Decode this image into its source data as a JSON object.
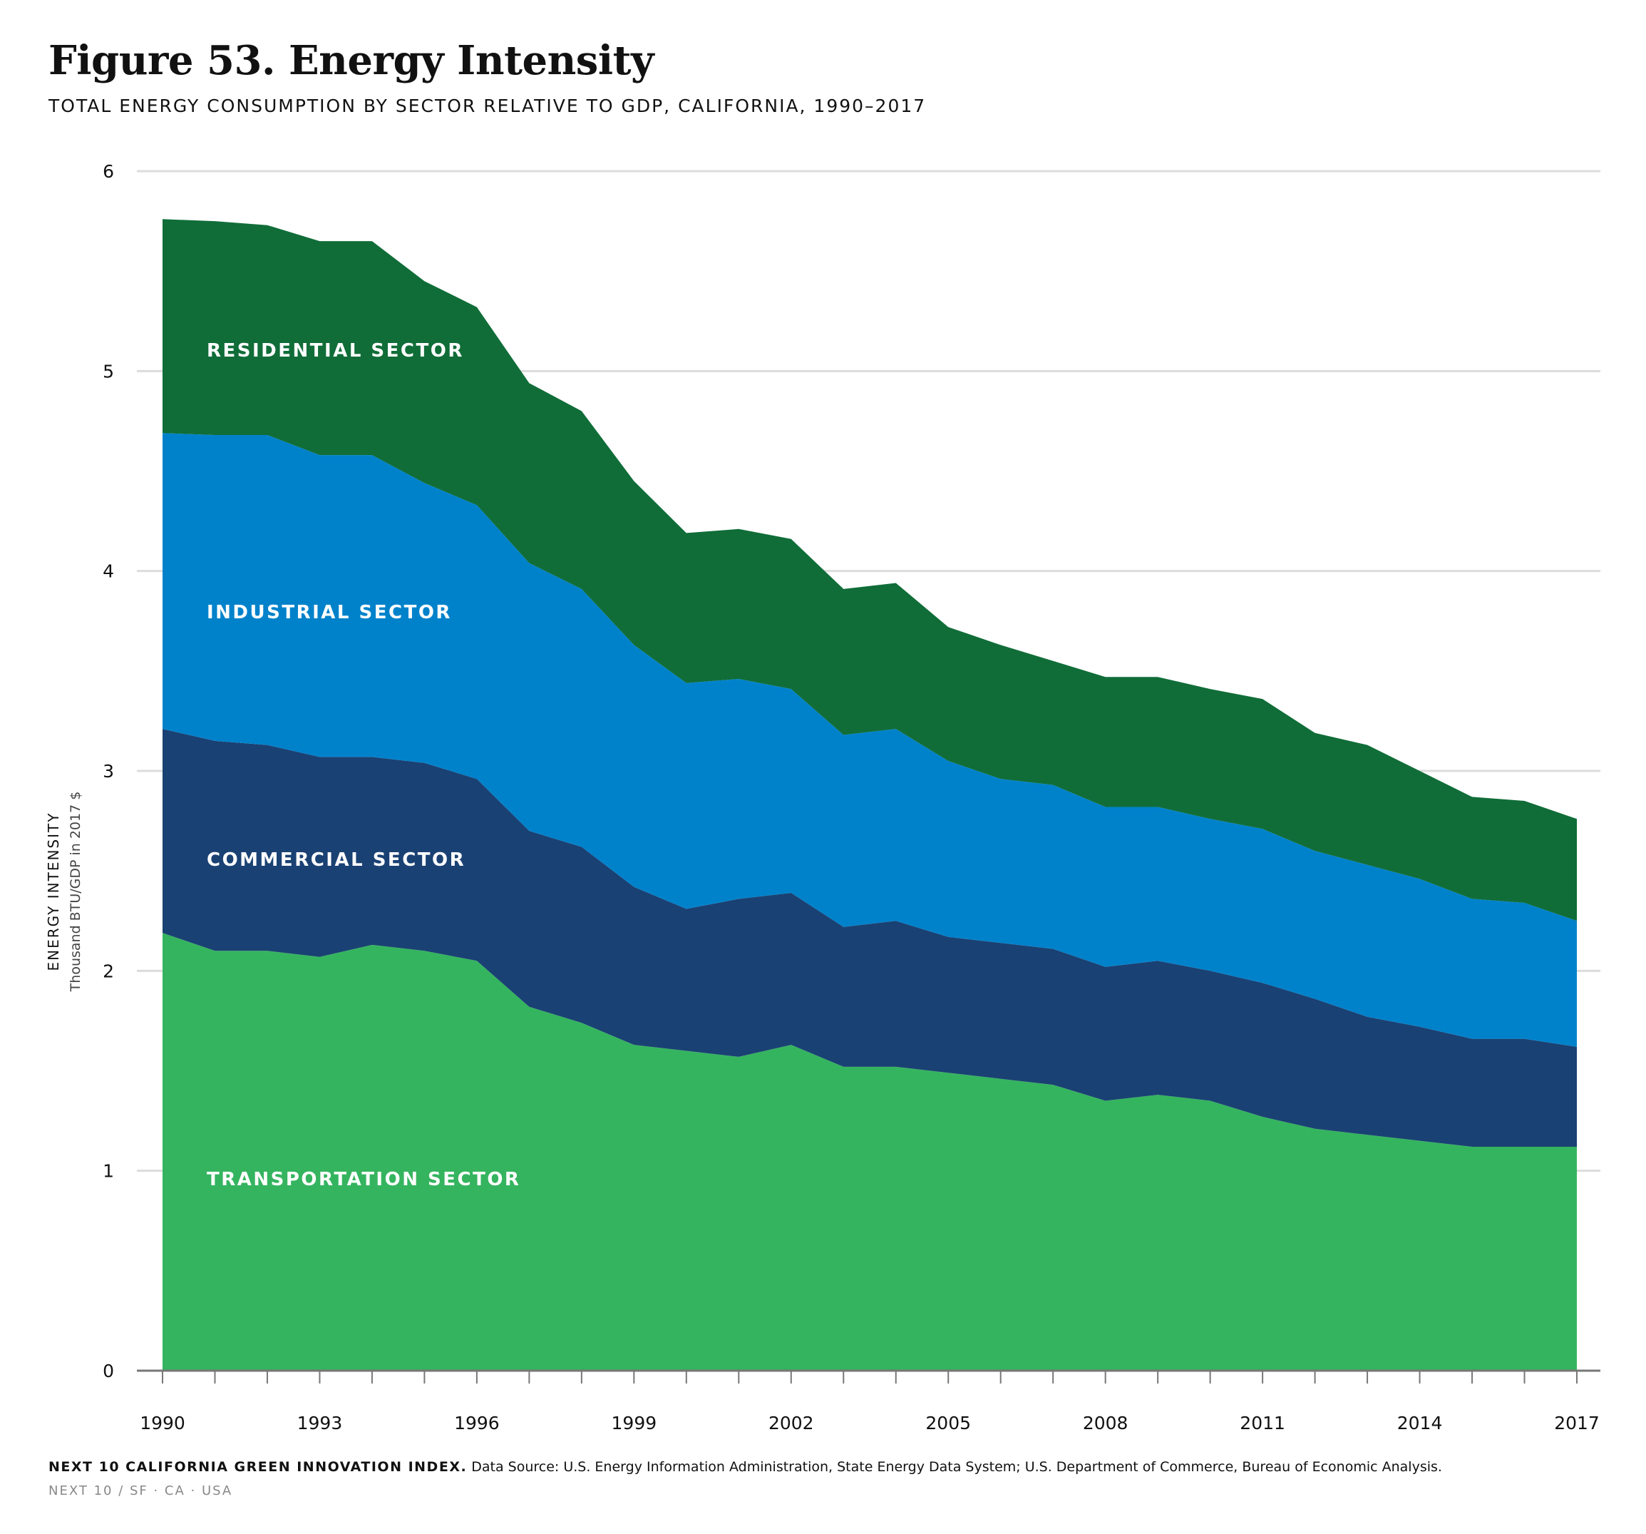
{
  "title": "Figure 53. Energy Intensity",
  "subtitle": "TOTAL ENERGY CONSUMPTION BY SECTOR RELATIVE TO GDP, CALIFORNIA, 1990–2017",
  "footer": {
    "source_title": "NEXT 10 CALIFORNIA GREEN INNOVATION INDEX.",
    "source_text": "Data Source: U.S. Energy Information Administration, State Energy Data System; U.S. Department of Commerce, Bureau of Economic Analysis.",
    "org_line": "NEXT 10  /  SF · CA · USA"
  },
  "chart_data": {
    "type": "area",
    "stacked": true,
    "ylabel": "ENERGY INTENSITY",
    "ylabel_sub": "Thousand BTU/GDP in 2017 $",
    "ylim": [
      0,
      6
    ],
    "yticks": [
      0,
      1,
      2,
      3,
      4,
      5,
      6
    ],
    "xlim": [
      1990,
      2017
    ],
    "xticks": [
      1990,
      1993,
      1996,
      1999,
      2002,
      2005,
      2008,
      2011,
      2014,
      2017
    ],
    "grid": true,
    "x": [
      1990,
      1991,
      1992,
      1993,
      1994,
      1995,
      1996,
      1997,
      1998,
      1999,
      2000,
      2001,
      2002,
      2003,
      2004,
      2005,
      2006,
      2007,
      2008,
      2009,
      2010,
      2011,
      2012,
      2013,
      2014,
      2015,
      2016,
      2017
    ],
    "series": [
      {
        "name": "TRANSPORTATION SECTOR",
        "color": "#35b45f",
        "values": [
          2.19,
          2.1,
          2.1,
          2.07,
          2.13,
          2.1,
          2.05,
          1.82,
          1.74,
          1.63,
          1.6,
          1.57,
          1.63,
          1.52,
          1.52,
          1.49,
          1.46,
          1.43,
          1.35,
          1.38,
          1.35,
          1.27,
          1.21,
          1.18,
          1.15,
          1.12,
          1.12,
          1.12
        ]
      },
      {
        "name": "COMMERCIAL SECTOR",
        "color": "#1a4173",
        "values": [
          1.02,
          1.05,
          1.03,
          1.0,
          0.94,
          0.94,
          0.91,
          0.88,
          0.88,
          0.79,
          0.71,
          0.79,
          0.76,
          0.7,
          0.73,
          0.68,
          0.68,
          0.68,
          0.67,
          0.67,
          0.65,
          0.67,
          0.65,
          0.59,
          0.57,
          0.54,
          0.54,
          0.5
        ]
      },
      {
        "name": "INDUSTRIAL SECTOR",
        "color": "#0082cb",
        "values": [
          1.48,
          1.53,
          1.55,
          1.51,
          1.51,
          1.4,
          1.37,
          1.34,
          1.29,
          1.21,
          1.13,
          1.1,
          1.02,
          0.96,
          0.96,
          0.88,
          0.82,
          0.82,
          0.8,
          0.77,
          0.76,
          0.77,
          0.74,
          0.76,
          0.74,
          0.7,
          0.68,
          0.63
        ]
      },
      {
        "name": "RESIDENTIAL SECTOR",
        "color": "#106d38",
        "values": [
          1.07,
          1.07,
          1.05,
          1.07,
          1.07,
          1.01,
          0.99,
          0.9,
          0.89,
          0.82,
          0.75,
          0.75,
          0.75,
          0.73,
          0.73,
          0.67,
          0.67,
          0.62,
          0.65,
          0.65,
          0.65,
          0.65,
          0.59,
          0.6,
          0.54,
          0.51,
          0.51,
          0.51
        ]
      }
    ],
    "labels": {
      "residential": "RESIDENTIAL SECTOR",
      "industrial": "INDUSTRIAL SECTOR",
      "commercial": "COMMERCIAL SECTOR",
      "transportation": "TRANSPORTATION SECTOR"
    }
  }
}
